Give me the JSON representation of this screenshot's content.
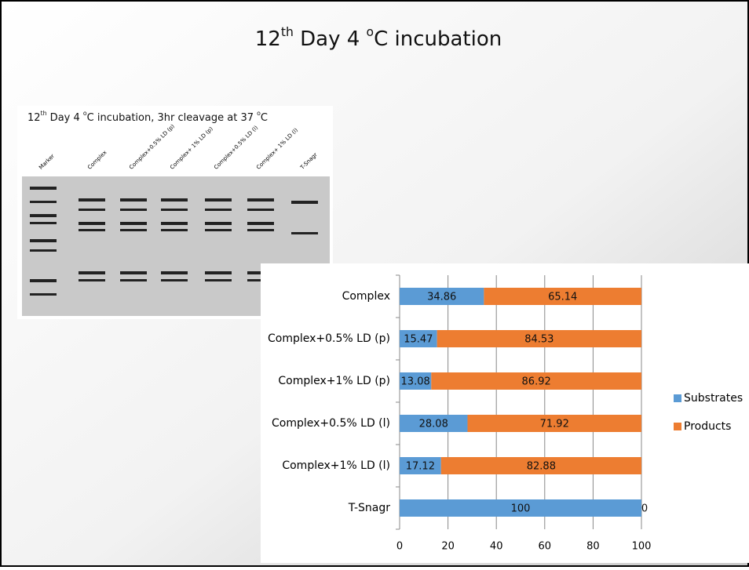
{
  "slide": {
    "title": [
      "12",
      "th",
      " Day 4 ",
      "o",
      "C incubation"
    ],
    "gel": {
      "caption": [
        "12",
        "th",
        " Day 4 ",
        "o",
        "C incubation,  3hr cleavage at 37 ",
        "o",
        "C"
      ],
      "lanes": [
        "Marker",
        "Complex",
        "Complex+0.5% LD (p)",
        "Complex+ 1% LD (p)",
        "Complex+0.5% LD (l)",
        "Complex+ 1% LD (l)",
        "T-Snagr"
      ]
    }
  },
  "chart_data": {
    "type": "stacked-barh",
    "categories": [
      "Complex",
      "Complex+0.5% LD (p)",
      "Complex+1% LD (p)",
      "Complex+0.5% LD (l)",
      "Complex+1% LD (l)",
      "T-Snagr"
    ],
    "series": [
      {
        "name": "Substrates",
        "color": "#5b9bd5",
        "values": [
          34.86,
          15.47,
          13.08,
          28.08,
          17.12,
          100
        ]
      },
      {
        "name": "Products",
        "color": "#ed7d31",
        "values": [
          65.14,
          84.53,
          86.92,
          71.92,
          82.88,
          0
        ]
      }
    ],
    "xlim": [
      0,
      100
    ],
    "xticks": [
      0,
      20,
      40,
      60,
      80,
      100
    ],
    "grid": true,
    "legend": "right"
  }
}
